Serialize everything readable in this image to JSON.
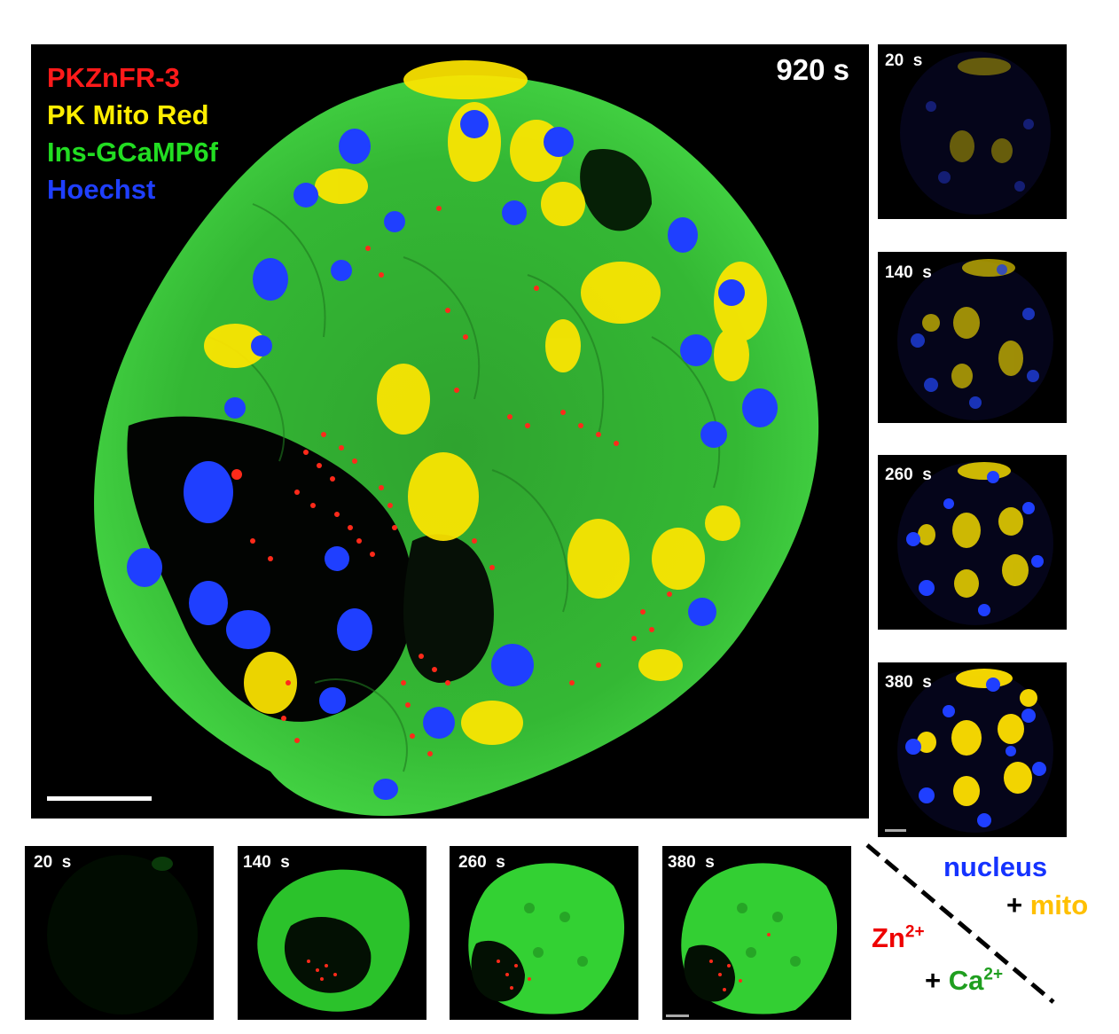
{
  "main_panel": {
    "timestamp": "920 s",
    "legend": [
      {
        "label": "PKZnFR-3",
        "color": "#ff1a1a"
      },
      {
        "label": "PK Mito Red",
        "color": "#ffee00"
      },
      {
        "label": "Ins-GCaMP6f",
        "color": "#22dd22"
      },
      {
        "label": "Hoechst",
        "color": "#1f3fff"
      }
    ]
  },
  "side_panels": {
    "channels": "nucleus + mito",
    "frames": [
      {
        "label": "20  s",
        "mito_level": 0.25,
        "nucleus_level": 0.4
      },
      {
        "label": "140  s",
        "mito_level": 0.55,
        "nucleus_level": 0.7
      },
      {
        "label": "260  s",
        "mito_level": 0.8,
        "nucleus_level": 0.9
      },
      {
        "label": "380  s",
        "mito_level": 0.95,
        "nucleus_level": 1.0
      }
    ]
  },
  "bottom_panels": {
    "channels": "Zn2+ + Ca2+",
    "frames": [
      {
        "label": "20  s",
        "calcium_level": 0.03
      },
      {
        "label": "140  s",
        "calcium_level": 0.7
      },
      {
        "label": "260  s",
        "calcium_level": 0.95
      },
      {
        "label": "380  s",
        "calcium_level": 0.9
      }
    ]
  },
  "key": {
    "nucleus": "nucleus",
    "plus_mito": "+",
    "mito": "mito",
    "zn": "Zn",
    "zn_sup": "2+",
    "plus_ca": "+",
    "ca": "Ca",
    "ca_sup": "2+"
  },
  "colors": {
    "zinc": "#ff1a1a",
    "mito": "#ffcc00",
    "calcium": "#22dd22",
    "nucleus": "#1f3fff",
    "key_nucleus": "#1533ff",
    "key_mito": "#ffc000",
    "key_zn": "#ee0000",
    "key_ca": "#1f9e1f"
  }
}
